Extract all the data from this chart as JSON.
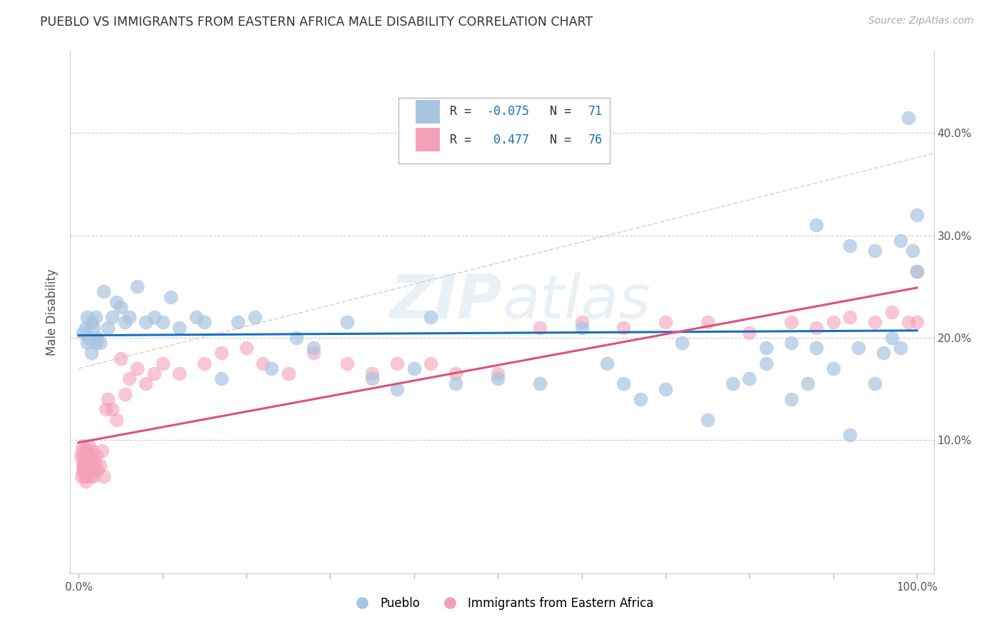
{
  "title": "PUEBLO VS IMMIGRANTS FROM EASTERN AFRICA MALE DISABILITY CORRELATION CHART",
  "source": "Source: ZipAtlas.com",
  "ylabel": "Male Disability",
  "pueblo_color": "#a8c4e0",
  "pueblo_edge_color": "#7aaad0",
  "eastern_africa_color": "#f4a0b8",
  "eastern_africa_edge_color": "#e07090",
  "pueblo_line_color": "#1a6fba",
  "eastern_africa_line_color": "#e0507a",
  "dashed_line_color": "#cccccc",
  "grid_color": "#cccccc",
  "watermark_color": "#e0e8f0",
  "pueblo_R": -0.075,
  "pueblo_N": 71,
  "eastern_africa_R": 0.477,
  "eastern_africa_N": 76,
  "xlim": [
    -0.01,
    1.02
  ],
  "ylim": [
    -0.03,
    0.48
  ],
  "pueblo_x": [
    0.005,
    0.008,
    0.01,
    0.01,
    0.012,
    0.015,
    0.015,
    0.018,
    0.02,
    0.02,
    0.022,
    0.025,
    0.03,
    0.035,
    0.04,
    0.045,
    0.05,
    0.055,
    0.06,
    0.07,
    0.08,
    0.09,
    0.1,
    0.11,
    0.12,
    0.14,
    0.15,
    0.17,
    0.19,
    0.21,
    0.23,
    0.26,
    0.28,
    0.32,
    0.35,
    0.38,
    0.4,
    0.42,
    0.45,
    0.5,
    0.55,
    0.6,
    0.63,
    0.65,
    0.67,
    0.7,
    0.72,
    0.75,
    0.78,
    0.8,
    0.82,
    0.85,
    0.87,
    0.88,
    0.9,
    0.92,
    0.93,
    0.95,
    0.96,
    0.97,
    0.98,
    0.99,
    0.995,
    1.0,
    1.0,
    0.98,
    0.95,
    0.92,
    0.88,
    0.85,
    0.82
  ],
  "pueblo_y": [
    0.205,
    0.21,
    0.195,
    0.22,
    0.2,
    0.215,
    0.185,
    0.21,
    0.195,
    0.22,
    0.2,
    0.195,
    0.245,
    0.21,
    0.22,
    0.235,
    0.23,
    0.215,
    0.22,
    0.25,
    0.215,
    0.22,
    0.215,
    0.24,
    0.21,
    0.22,
    0.215,
    0.16,
    0.215,
    0.22,
    0.17,
    0.2,
    0.19,
    0.215,
    0.16,
    0.15,
    0.17,
    0.22,
    0.155,
    0.16,
    0.155,
    0.21,
    0.175,
    0.155,
    0.14,
    0.15,
    0.195,
    0.12,
    0.155,
    0.16,
    0.19,
    0.14,
    0.155,
    0.19,
    0.17,
    0.105,
    0.19,
    0.155,
    0.185,
    0.2,
    0.19,
    0.415,
    0.285,
    0.32,
    0.265,
    0.295,
    0.285,
    0.29,
    0.31,
    0.195,
    0.175
  ],
  "eastern_africa_x": [
    0.002,
    0.003,
    0.004,
    0.005,
    0.005,
    0.005,
    0.005,
    0.006,
    0.006,
    0.007,
    0.007,
    0.008,
    0.008,
    0.008,
    0.009,
    0.009,
    0.01,
    0.01,
    0.01,
    0.011,
    0.011,
    0.012,
    0.012,
    0.013,
    0.014,
    0.015,
    0.015,
    0.016,
    0.017,
    0.018,
    0.019,
    0.02,
    0.021,
    0.022,
    0.025,
    0.028,
    0.03,
    0.032,
    0.035,
    0.04,
    0.045,
    0.05,
    0.055,
    0.06,
    0.07,
    0.08,
    0.09,
    0.1,
    0.12,
    0.15,
    0.17,
    0.2,
    0.22,
    0.25,
    0.28,
    0.32,
    0.35,
    0.38,
    0.42,
    0.45,
    0.5,
    0.55,
    0.6,
    0.65,
    0.7,
    0.75,
    0.8,
    0.85,
    0.88,
    0.9,
    0.92,
    0.95,
    0.97,
    0.99,
    1.0,
    1.0
  ],
  "eastern_africa_y": [
    0.085,
    0.065,
    0.09,
    0.075,
    0.08,
    0.095,
    0.07,
    0.085,
    0.07,
    0.075,
    0.065,
    0.08,
    0.075,
    0.06,
    0.09,
    0.07,
    0.08,
    0.065,
    0.09,
    0.075,
    0.085,
    0.07,
    0.095,
    0.08,
    0.065,
    0.085,
    0.075,
    0.09,
    0.07,
    0.065,
    0.08,
    0.075,
    0.085,
    0.07,
    0.075,
    0.09,
    0.065,
    0.13,
    0.14,
    0.13,
    0.12,
    0.18,
    0.145,
    0.16,
    0.17,
    0.155,
    0.165,
    0.175,
    0.165,
    0.175,
    0.185,
    0.19,
    0.175,
    0.165,
    0.185,
    0.175,
    0.165,
    0.175,
    0.175,
    0.165,
    0.165,
    0.21,
    0.215,
    0.21,
    0.215,
    0.215,
    0.205,
    0.215,
    0.21,
    0.215,
    0.22,
    0.215,
    0.225,
    0.215,
    0.265,
    0.215
  ]
}
